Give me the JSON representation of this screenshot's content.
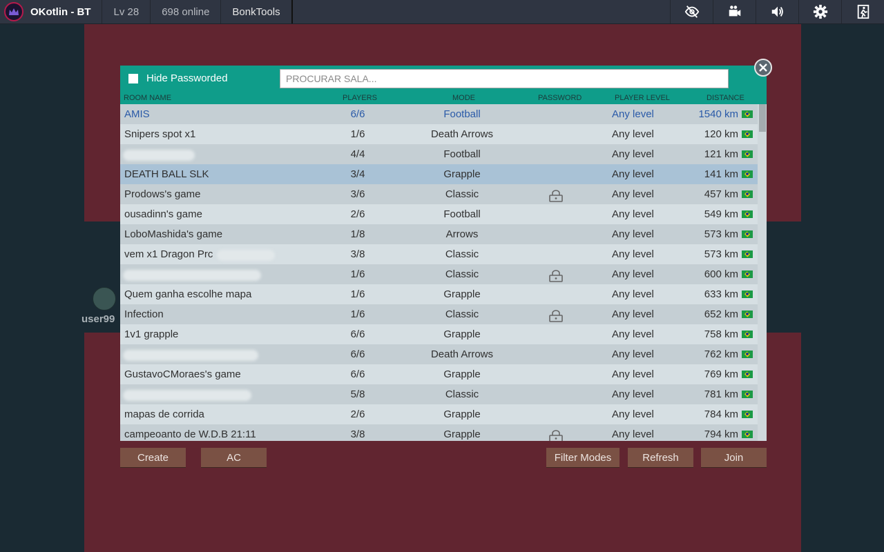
{
  "topbar": {
    "username": "OKotlin - BT",
    "level": "Lv 28",
    "online": "698 online",
    "mod": "BonkTools",
    "icons": [
      "visibility-off-icon",
      "camera-icon",
      "volume-icon",
      "settings-gear-icon",
      "exit-icon"
    ]
  },
  "side_user": {
    "name": "user99"
  },
  "dialog": {
    "hide_passworded_label": "Hide Passworded",
    "search_placeholder": "PROCURAR SALA...",
    "columns": {
      "room_name": "ROOM NAME",
      "players": "PLAYERS",
      "mode": "MODE",
      "password": "PASSWORD",
      "player_level": "PLAYER LEVEL",
      "distance": "DISTANCE"
    },
    "rooms": [
      {
        "name": "AMIS",
        "players": "6/6",
        "mode": "Football",
        "locked": false,
        "level": "Any level",
        "distance": "1540 km"
      },
      {
        "name": "Snipers spot x1",
        "players": "1/6",
        "mode": "Death Arrows",
        "locked": false,
        "level": "Any level",
        "distance": "120 km"
      },
      {
        "name": "",
        "players": "4/4",
        "mode": "Football",
        "locked": false,
        "level": "Any level",
        "distance": "121 km"
      },
      {
        "name": "DEATH BALL SLK",
        "players": "3/4",
        "mode": "Grapple",
        "locked": false,
        "level": "Any level",
        "distance": "141 km"
      },
      {
        "name": "Prodows's game",
        "players": "3/6",
        "mode": "Classic",
        "locked": true,
        "level": "Any level",
        "distance": "457 km"
      },
      {
        "name": "ousadinn's game",
        "players": "2/6",
        "mode": "Football",
        "locked": false,
        "level": "Any level",
        "distance": "549 km"
      },
      {
        "name": "LoboMashida's game",
        "players": "1/8",
        "mode": "Arrows",
        "locked": false,
        "level": "Any level",
        "distance": "573 km"
      },
      {
        "name": "vem x1 Dragon Prc",
        "players": "3/8",
        "mode": "Classic",
        "locked": false,
        "level": "Any level",
        "distance": "573 km"
      },
      {
        "name": "",
        "players": "1/6",
        "mode": "Classic",
        "locked": true,
        "level": "Any level",
        "distance": "600 km"
      },
      {
        "name": "Quem ganha escolhe mapa",
        "players": "1/6",
        "mode": "Grapple",
        "locked": false,
        "level": "Any level",
        "distance": "633 km"
      },
      {
        "name": "Infection",
        "players": "1/6",
        "mode": "Classic",
        "locked": true,
        "level": "Any level",
        "distance": "652 km"
      },
      {
        "name": "1v1 grapple",
        "players": "6/6",
        "mode": "Grapple",
        "locked": false,
        "level": "Any level",
        "distance": "758 km"
      },
      {
        "name": "",
        "players": "6/6",
        "mode": "Death Arrows",
        "locked": false,
        "level": "Any level",
        "distance": "762 km"
      },
      {
        "name": "GustavoCMoraes's game",
        "players": "6/6",
        "mode": "Grapple",
        "locked": false,
        "level": "Any level",
        "distance": "769 km"
      },
      {
        "name": "",
        "players": "5/8",
        "mode": "Classic",
        "locked": false,
        "level": "Any level",
        "distance": "781 km"
      },
      {
        "name": "mapas de corrida",
        "players": "2/6",
        "mode": "Grapple",
        "locked": false,
        "level": "Any level",
        "distance": "784 km"
      },
      {
        "name": "campeoanto de W.D.B 21:11",
        "players": "3/8",
        "mode": "Grapple",
        "locked": true,
        "level": "Any level",
        "distance": "794 km"
      }
    ]
  },
  "buttons": {
    "create": "Create",
    "ac": "AC",
    "filter_modes": "Filter Modes",
    "refresh": "Refresh",
    "join": "Join"
  },
  "colors": {
    "accent_teal": "#0f9d8a",
    "background_maroon": "#612530",
    "button_brown": "#7a5144",
    "topbar": "#2f3542"
  }
}
